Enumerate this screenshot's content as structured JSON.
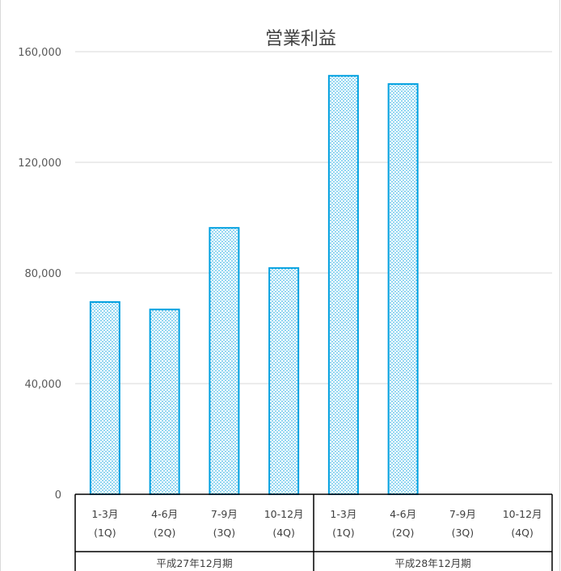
{
  "chart_data": {
    "type": "bar",
    "title": "営業利益",
    "xlabel": "",
    "ylabel": "",
    "ylim": [
      0,
      160000
    ],
    "yticks": [
      "0",
      "40,000",
      "80,000",
      "120,000",
      "160,000"
    ],
    "ytick_values": [
      0,
      40000,
      80000,
      120000,
      160000
    ],
    "grid": true,
    "legend": "none",
    "bar_color": "#00a0e0",
    "categories": [
      {
        "period": "1-3月",
        "quarter": "(1Q)"
      },
      {
        "period": "4-6月",
        "quarter": "(2Q)"
      },
      {
        "period": "7-9月",
        "quarter": "(3Q)"
      },
      {
        "period": "10-12月",
        "quarter": "(4Q)"
      },
      {
        "period": "1-3月",
        "quarter": "(1Q)"
      },
      {
        "period": "4-6月",
        "quarter": "(2Q)"
      },
      {
        "period": "7-9月",
        "quarter": "(3Q)"
      },
      {
        "period": "10-12月",
        "quarter": "(4Q)"
      }
    ],
    "groups": [
      {
        "label": "平成27年12月期",
        "span": 4
      },
      {
        "label": "平成28年12月期",
        "span": 4
      }
    ],
    "values": [
      69500,
      66800,
      96300,
      81800,
      151300,
      148300,
      null,
      null
    ]
  }
}
